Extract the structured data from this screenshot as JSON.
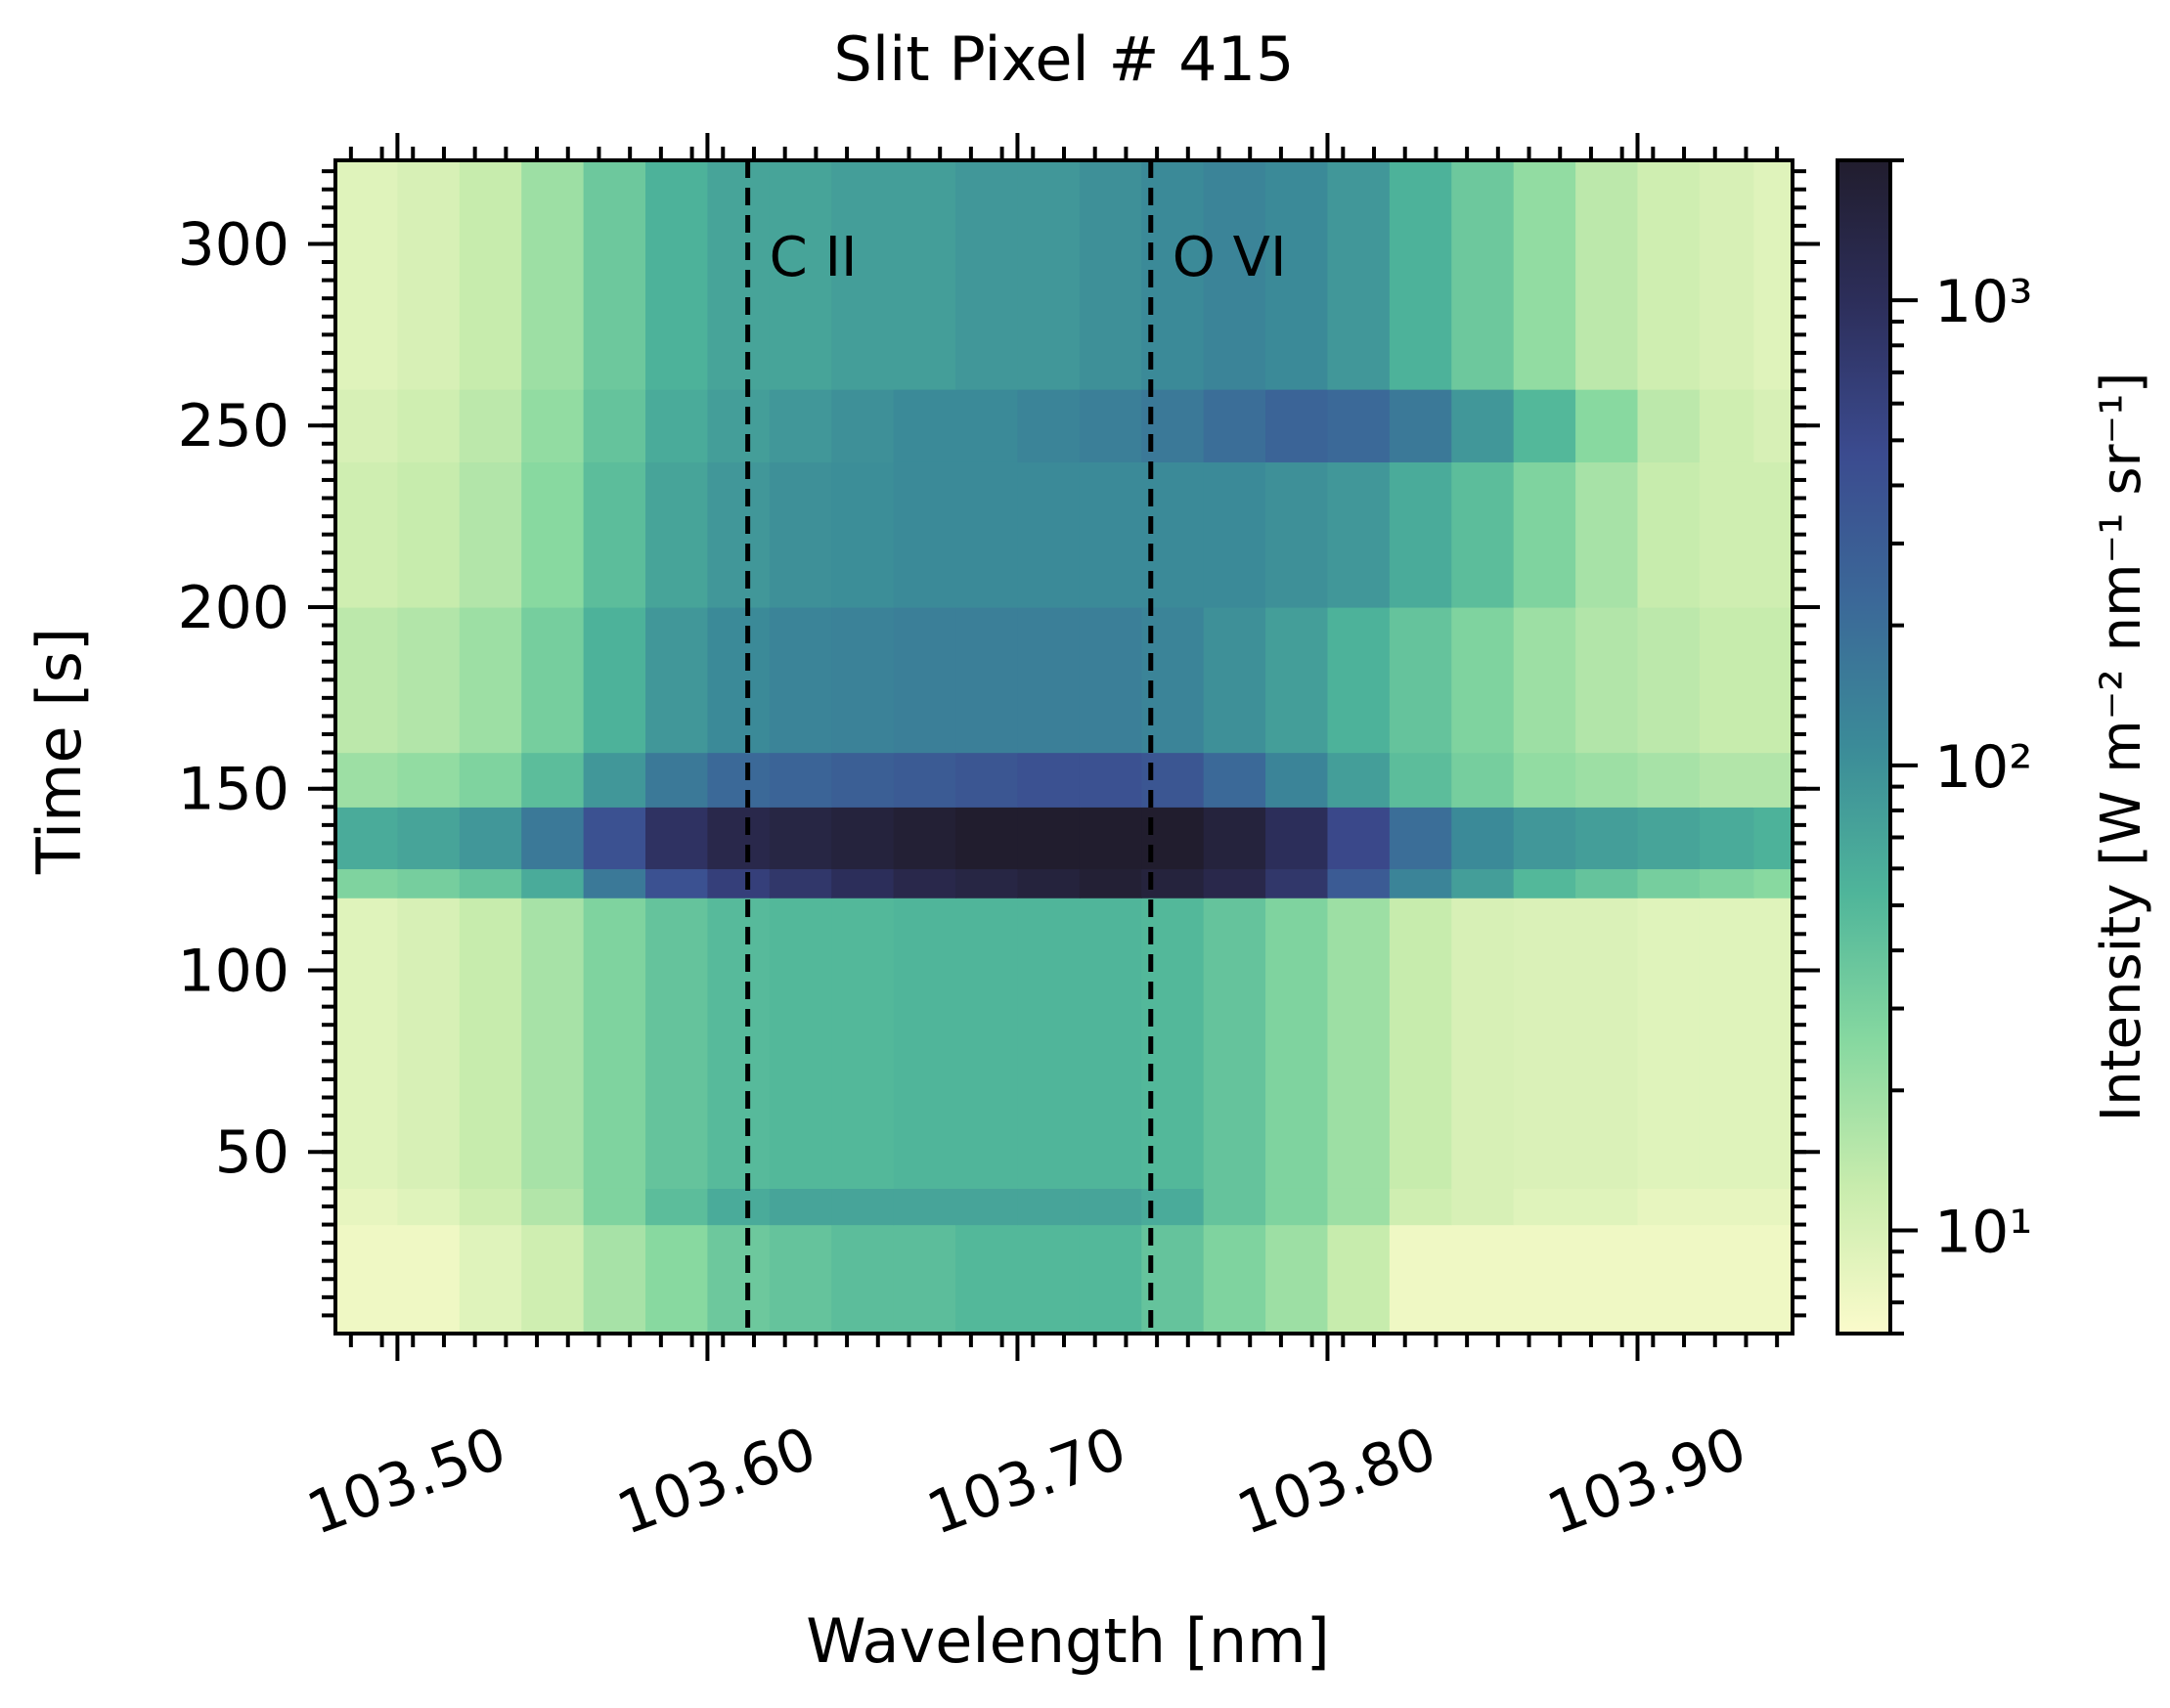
{
  "chart_data": {
    "type": "heatmap",
    "title": "Slit Pixel # 415",
    "xlabel": "Wavelength [nm]",
    "ylabel": "Time [s]",
    "xlim": [
      103.48,
      103.95
    ],
    "ylim": [
      0,
      323
    ],
    "x_ticks": [
      103.5,
      103.6,
      103.7,
      103.8,
      103.9
    ],
    "x_tick_labels": [
      "103.50",
      "103.60",
      "103.70",
      "103.80",
      "103.90"
    ],
    "y_ticks": [
      50,
      100,
      150,
      200,
      250,
      300
    ],
    "y_tick_labels": [
      "50",
      "100",
      "150",
      "200",
      "250",
      "300"
    ],
    "colorbar": {
      "label": "Intensity [W m⁻² nm⁻¹ sr⁻¹]",
      "scale": "log",
      "range": [
        6,
        2000
      ],
      "ticks": [
        10,
        100,
        1000
      ],
      "tick_labels": [
        "10¹",
        "10²",
        "10³"
      ],
      "colormap": [
        "#fbfbcb",
        "#c8ecad",
        "#86d8a0",
        "#4fb59a",
        "#3b8b98",
        "#3b6898",
        "#3b4b8f",
        "#2d2f5c",
        "#211d2e"
      ]
    },
    "reference_lines": [
      {
        "label": "C II",
        "x": 103.613,
        "style": "dashed",
        "color": "#000000"
      },
      {
        "label": "O VI",
        "x": 103.743,
        "style": "dashed",
        "color": "#000000"
      }
    ],
    "wavelength_bins": [
      103.49,
      103.51,
      103.53,
      103.55,
      103.57,
      103.59,
      103.61,
      103.63,
      103.65,
      103.67,
      103.69,
      103.71,
      103.73,
      103.75,
      103.77,
      103.79,
      103.81,
      103.83,
      103.85,
      103.87,
      103.89,
      103.91,
      103.93,
      103.945
    ],
    "time_bands": [
      {
        "time_range": [
          0,
          30
        ],
        "log_intensity": [
          0.85,
          0.85,
          0.95,
          1.05,
          1.25,
          1.4,
          1.55,
          1.6,
          1.65,
          1.65,
          1.7,
          1.7,
          1.7,
          1.6,
          1.45,
          1.3,
          1.1,
          0.85,
          0.85,
          0.85,
          0.85,
          0.85,
          0.85,
          0.85
        ]
      },
      {
        "time_range": [
          30,
          40
        ],
        "log_intensity": [
          0.9,
          0.95,
          1.05,
          1.2,
          1.45,
          1.65,
          1.8,
          1.85,
          1.85,
          1.85,
          1.85,
          1.85,
          1.85,
          1.8,
          1.6,
          1.45,
          1.3,
          1.05,
          1.0,
          0.95,
          0.95,
          0.9,
          0.9,
          0.9
        ]
      },
      {
        "time_range": [
          40,
          120
        ],
        "log_intensity": [
          0.95,
          1.0,
          1.1,
          1.25,
          1.45,
          1.6,
          1.68,
          1.7,
          1.7,
          1.72,
          1.72,
          1.72,
          1.72,
          1.7,
          1.6,
          1.45,
          1.3,
          1.1,
          1.0,
          0.98,
          0.98,
          0.95,
          0.95,
          0.95
        ]
      },
      {
        "time_range": [
          120,
          128
        ],
        "log_intensity": [
          1.45,
          1.5,
          1.6,
          1.8,
          2.2,
          2.6,
          2.8,
          2.9,
          3.0,
          3.1,
          3.15,
          3.2,
          3.25,
          3.2,
          3.1,
          2.9,
          2.5,
          2.1,
          1.9,
          1.7,
          1.6,
          1.5,
          1.45,
          1.4
        ]
      },
      {
        "time_range": [
          128,
          145
        ],
        "log_intensity": [
          1.8,
          1.85,
          1.95,
          2.2,
          2.6,
          2.95,
          3.1,
          3.15,
          3.2,
          3.25,
          3.3,
          3.35,
          3.35,
          3.3,
          3.2,
          3.0,
          2.7,
          2.3,
          2.05,
          1.95,
          1.9,
          1.85,
          1.8,
          1.75
        ]
      },
      {
        "time_range": [
          145,
          160
        ],
        "log_intensity": [
          1.3,
          1.35,
          1.45,
          1.65,
          1.95,
          2.2,
          2.35,
          2.4,
          2.45,
          2.5,
          2.55,
          2.6,
          2.6,
          2.55,
          2.35,
          2.1,
          1.9,
          1.65,
          1.5,
          1.35,
          1.3,
          1.25,
          1.2,
          1.2
        ]
      },
      {
        "time_range": [
          160,
          200
        ],
        "log_intensity": [
          1.15,
          1.2,
          1.3,
          1.5,
          1.75,
          1.95,
          2.05,
          2.1,
          2.12,
          2.15,
          2.15,
          2.15,
          2.15,
          2.1,
          2.0,
          1.9,
          1.75,
          1.6,
          1.45,
          1.3,
          1.2,
          1.15,
          1.1,
          1.1
        ]
      },
      {
        "time_range": [
          200,
          240
        ],
        "log_intensity": [
          1.05,
          1.1,
          1.2,
          1.4,
          1.65,
          1.85,
          1.95,
          2.0,
          2.02,
          2.05,
          2.05,
          2.05,
          2.05,
          2.05,
          2.05,
          2.0,
          1.95,
          1.8,
          1.65,
          1.45,
          1.25,
          1.1,
          1.05,
          1.05
        ]
      },
      {
        "time_range": [
          240,
          260
        ],
        "log_intensity": [
          1.0,
          1.05,
          1.15,
          1.35,
          1.6,
          1.8,
          1.9,
          1.95,
          2.0,
          2.05,
          2.05,
          2.1,
          2.15,
          2.2,
          2.3,
          2.4,
          2.35,
          2.2,
          1.95,
          1.7,
          1.4,
          1.15,
          1.05,
          1.0
        ]
      },
      {
        "time_range": [
          260,
          323
        ],
        "log_intensity": [
          0.95,
          1.0,
          1.1,
          1.3,
          1.55,
          1.75,
          1.85,
          1.85,
          1.9,
          1.9,
          1.95,
          1.95,
          2.0,
          2.05,
          2.1,
          2.05,
          1.95,
          1.75,
          1.55,
          1.35,
          1.15,
          1.05,
          1.0,
          0.95
        ]
      }
    ]
  }
}
